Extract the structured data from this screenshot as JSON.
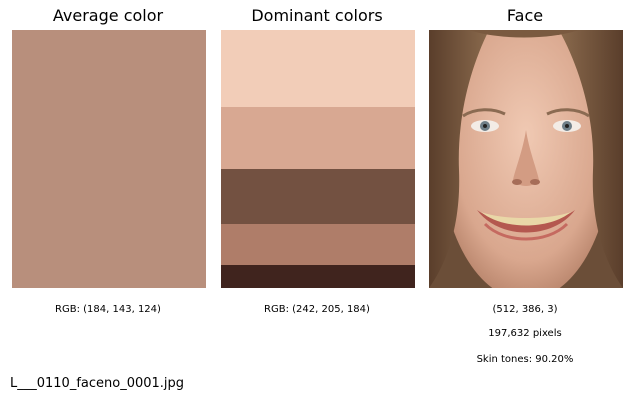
{
  "panels": {
    "average": {
      "title": "Average color",
      "color": "#B88F7C",
      "caption": "RGB: (184, 143, 124)"
    },
    "dominant": {
      "title": "Dominant colors",
      "colors": [
        "#F2CDB8",
        "#D8A892",
        "#735141",
        "#AF7D69",
        "#40241E"
      ],
      "proportions": [
        0.3,
        0.24,
        0.21,
        0.16,
        0.09
      ],
      "caption": "RGB: (242, 205, 184)"
    },
    "face": {
      "title": "Face",
      "shape": "(512, 386, 3)",
      "pixels": "197,632 pixels",
      "skin_tones": "Skin tones: 90.20%"
    }
  },
  "footer": {
    "filename": "L___0110_faceno_0001.jpg"
  }
}
